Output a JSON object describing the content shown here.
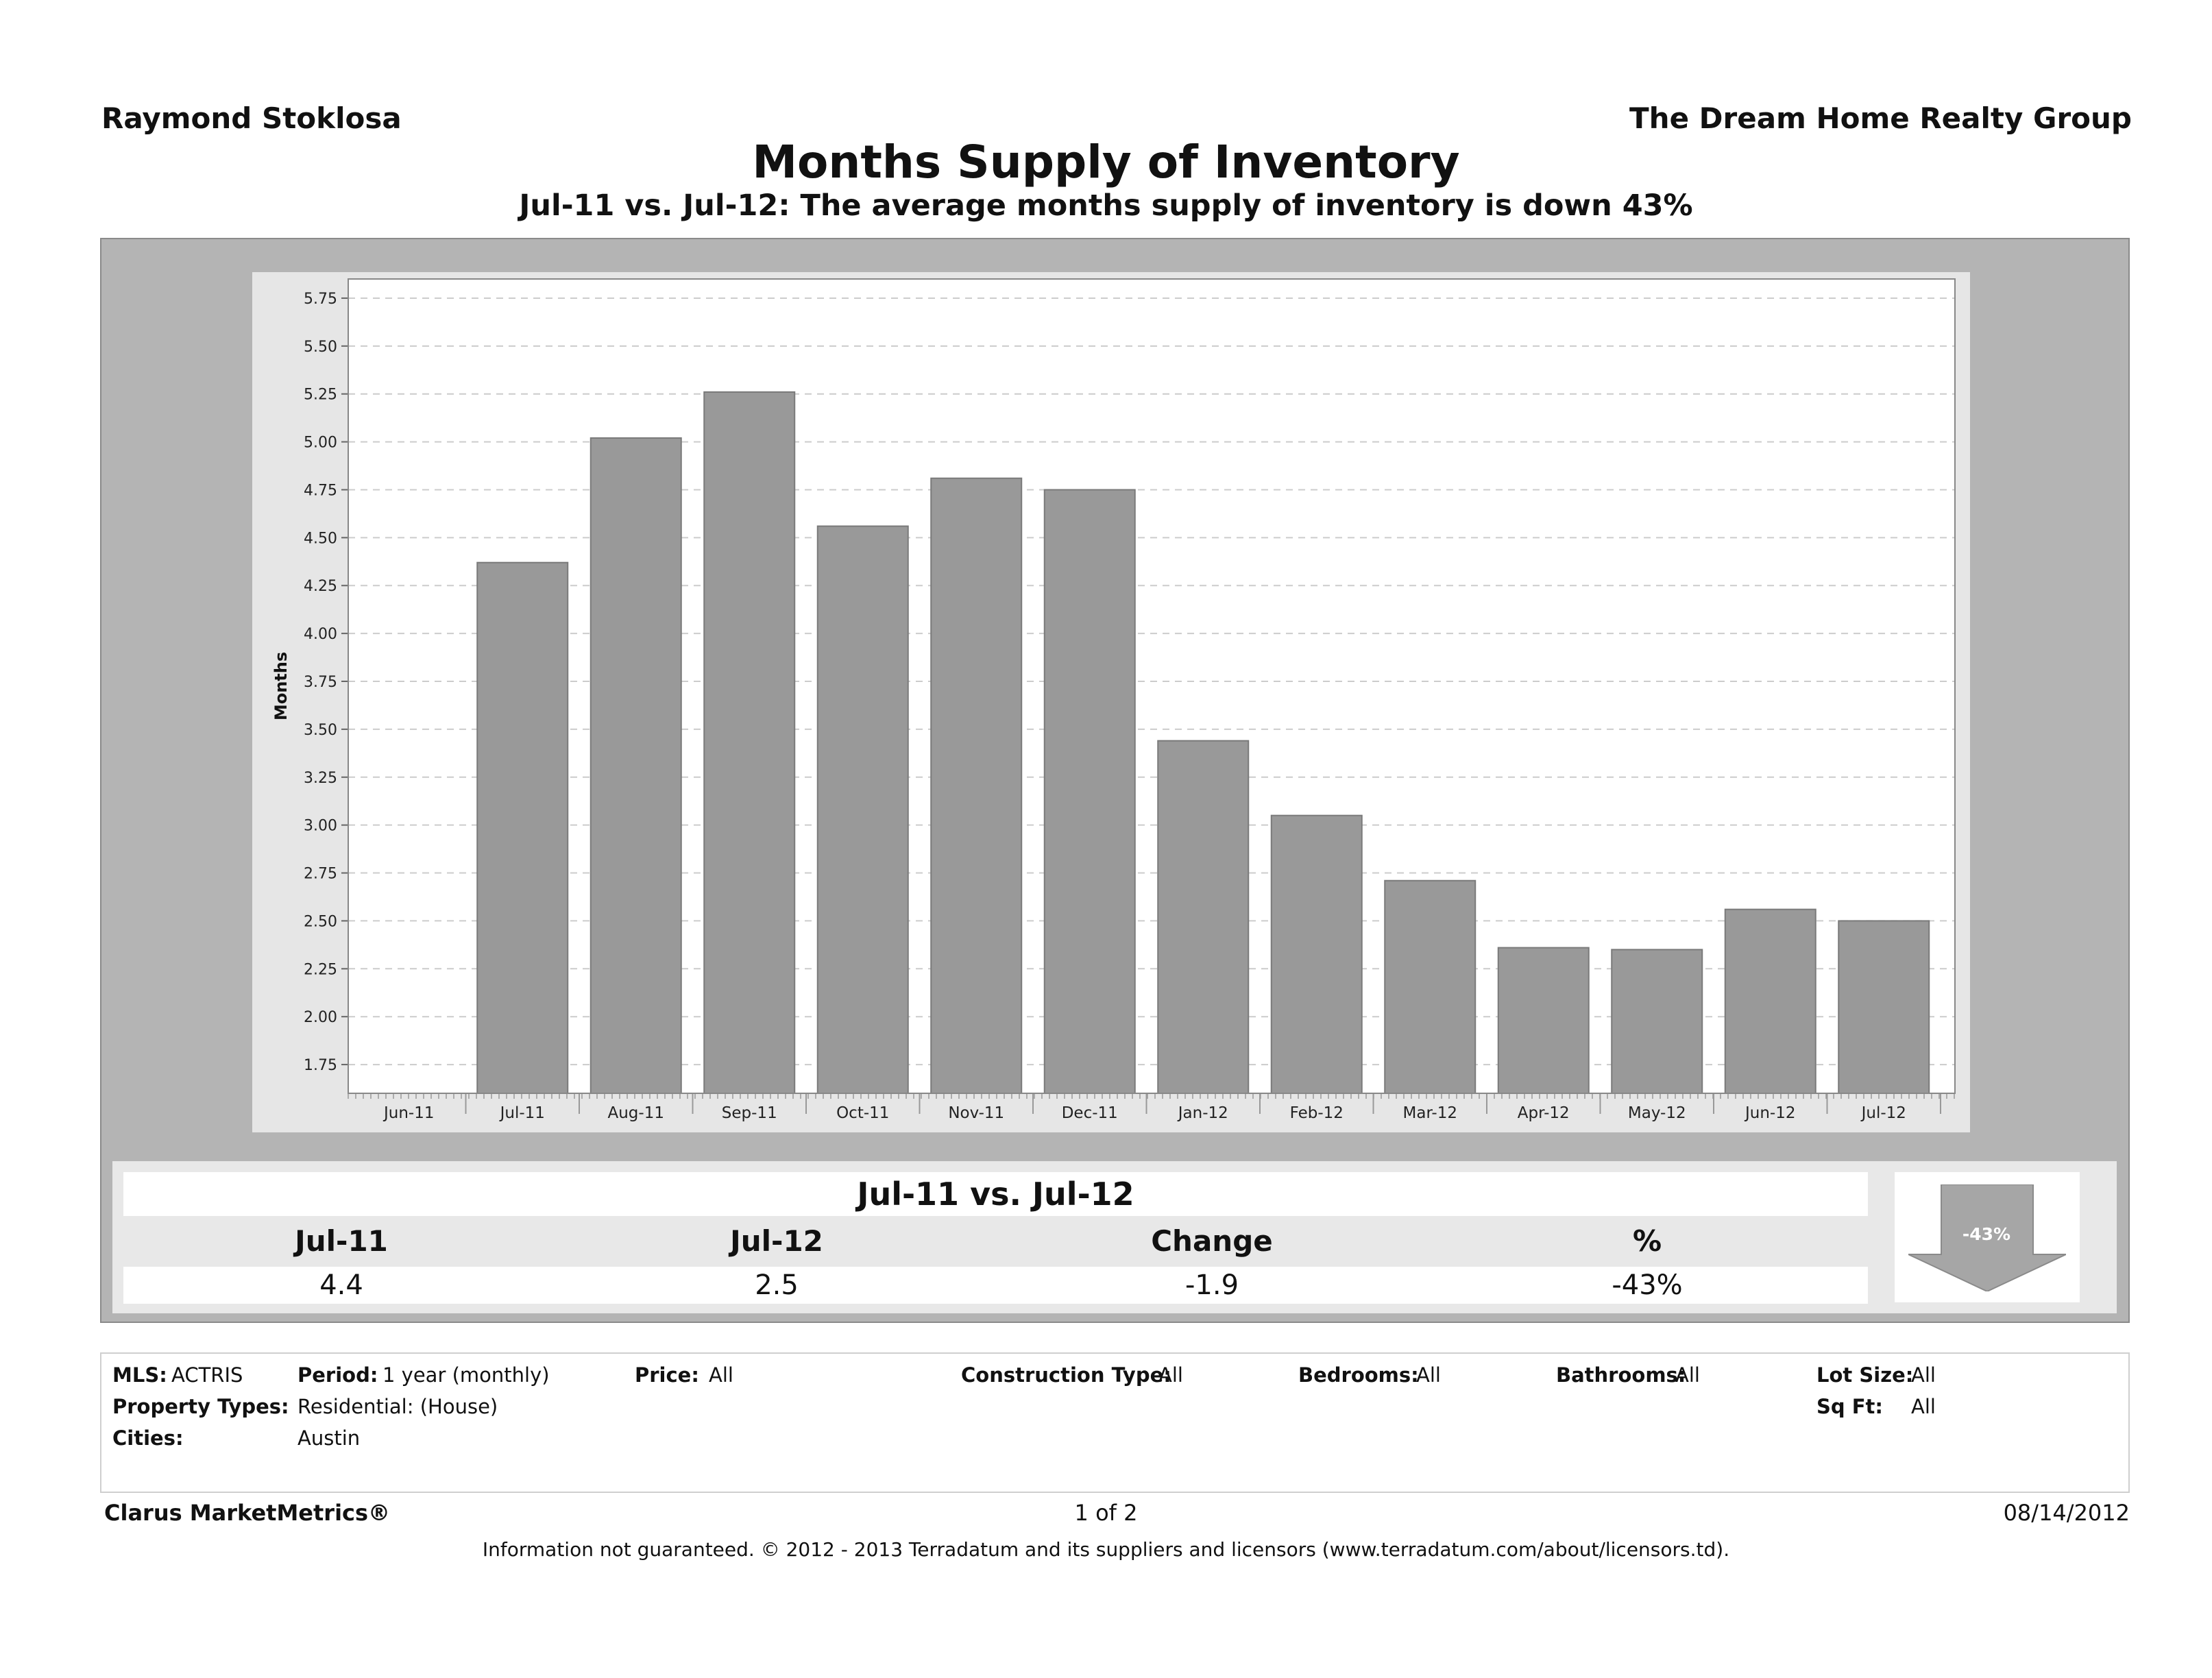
{
  "header": {
    "agent": "Raymond Stoklosa",
    "company": "The Dream Home Realty Group",
    "title": "Months Supply of Inventory",
    "subtitle": "Jul-11 vs. Jul-12:  The average months supply of inventory is down 43%"
  },
  "chart_data": {
    "type": "bar",
    "categories": [
      "Jun-11",
      "Jul-11",
      "Aug-11",
      "Sep-11",
      "Oct-11",
      "Nov-11",
      "Dec-11",
      "Jan-12",
      "Feb-12",
      "Mar-12",
      "Apr-12",
      "May-12",
      "Jun-12",
      "Jul-12"
    ],
    "values": [
      null,
      4.37,
      5.02,
      5.26,
      4.56,
      4.81,
      4.75,
      3.44,
      3.05,
      2.71,
      2.36,
      2.35,
      2.56,
      2.5
    ],
    "ylabel": "Months",
    "ylim": [
      1.6,
      5.85
    ],
    "yticks": [
      "1.75",
      "2.00",
      "2.25",
      "2.50",
      "2.75",
      "3.00",
      "3.25",
      "3.50",
      "3.75",
      "4.00",
      "4.25",
      "4.50",
      "4.75",
      "5.00",
      "5.25",
      "5.50",
      "5.75"
    ],
    "grid": true,
    "bar_color": "#999999"
  },
  "comparison": {
    "title": "Jul-11 vs. Jul-12",
    "headers": [
      "Jul-11",
      "Jul-12",
      "Change",
      "%"
    ],
    "values": [
      "4.4",
      "2.5",
      "-1.9",
      "-43%"
    ],
    "badge": "-43%"
  },
  "filters": {
    "mls_label": "MLS:",
    "mls": "ACTRIS",
    "period_label": "Period:",
    "period": "1 year (monthly)",
    "price_label": "Price:",
    "price": "All",
    "construction_label": "Construction Type:",
    "construction": "All",
    "bedrooms_label": "Bedrooms:",
    "bedrooms": "All",
    "bathrooms_label": "Bathrooms:",
    "bathrooms": "All",
    "lotsize_label": "Lot Size:",
    "lotsize": "All",
    "property_label": "Property Types:",
    "property": "Residential: (House)",
    "sqft_label": "Sq Ft:",
    "sqft": "All",
    "cities_label": "Cities:",
    "cities": "Austin"
  },
  "footer": {
    "brand": "Clarus MarketMetrics®",
    "page": "1 of 2",
    "date": "08/14/2012",
    "disclaimer": "Information not guaranteed.  © 2012 - 2013 Terradatum and its suppliers and licensors (www.terradatum.com/about/licensors.td)."
  }
}
